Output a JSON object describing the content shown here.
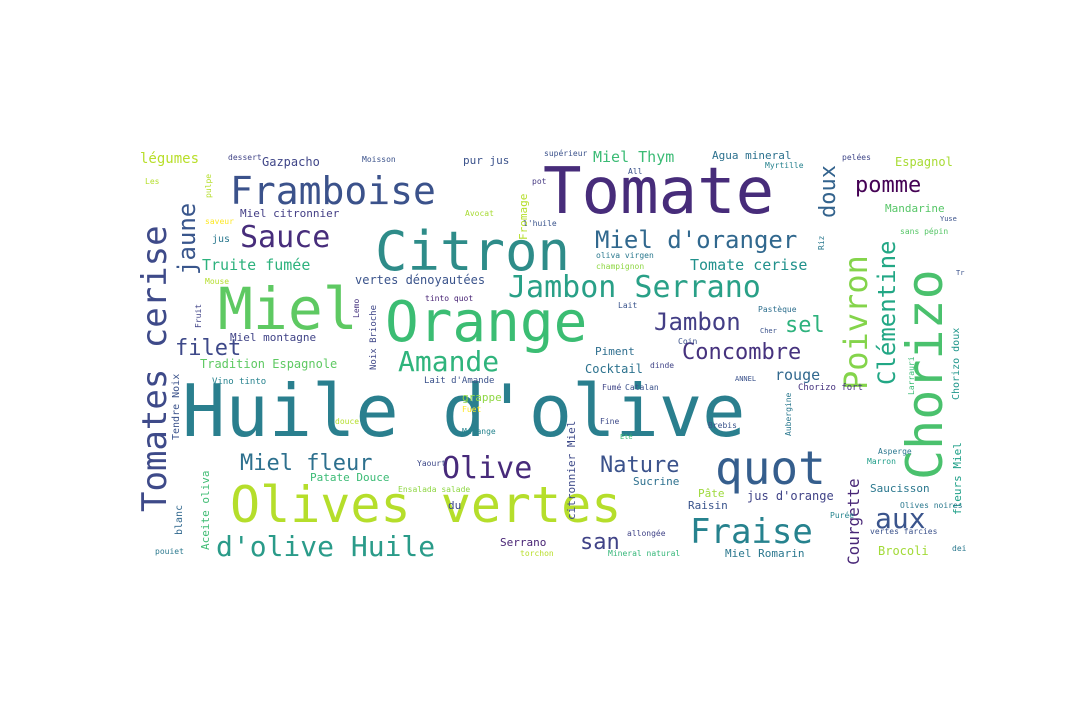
{
  "words": [
    {
      "text": "Huile d'olive",
      "color": "#2a7f8e"
    },
    {
      "text": "Tomate",
      "color": "#472c7a"
    },
    {
      "text": "Citron",
      "color": "#2e8c89"
    },
    {
      "text": "Orange",
      "color": "#3bbd73"
    },
    {
      "text": "Miel",
      "color": "#5ec962"
    },
    {
      "text": "Olives vertes",
      "color": "#b5de2b"
    },
    {
      "text": "Framboise",
      "color": "#3b528b"
    },
    {
      "text": "Chorizo",
      "color": "#4ac16d"
    },
    {
      "text": "quot",
      "color": "#355e8d"
    },
    {
      "text": "Jambon Serrano",
      "color": "#29a087"
    },
    {
      "text": "Tomates cerise",
      "color": "#3e4a89"
    },
    {
      "text": "Sauce",
      "color": "#472d7b"
    },
    {
      "text": "Miel d'oranger",
      "color": "#31688e"
    },
    {
      "text": "d'olive Huile",
      "color": "#2a9b89"
    },
    {
      "text": "Fraise",
      "color": "#26828e"
    },
    {
      "text": "Olive",
      "color": "#472a7a"
    },
    {
      "text": "Poivron",
      "color": "#84d44b"
    },
    {
      "text": "Clémentine",
      "color": "#22a785"
    },
    {
      "text": "Amande",
      "color": "#2fb47c"
    },
    {
      "text": "Jambon",
      "color": "#433e85"
    },
    {
      "text": "Concombre",
      "color": "#46327e"
    },
    {
      "text": "Miel fleur",
      "color": "#2d708e"
    },
    {
      "text": "Nature",
      "color": "#3b528b"
    },
    {
      "text": "aux",
      "color": "#3a548c"
    },
    {
      "text": "jaune",
      "color": "#39568c"
    },
    {
      "text": "pomme",
      "color": "#440154"
    },
    {
      "text": "doux",
      "color": "#33638d"
    },
    {
      "text": "sel",
      "color": "#2db27d"
    },
    {
      "text": "filet",
      "color": "#3e4989"
    },
    {
      "text": "san",
      "color": "#404387"
    },
    {
      "text": "Courgette",
      "color": "#482677"
    },
    {
      "text": "Truite fumée",
      "color": "#2db27d"
    },
    {
      "text": "Tomate cerise",
      "color": "#21918c"
    },
    {
      "text": "Miel Thym",
      "color": "#3bbb75"
    },
    {
      "text": "rouge",
      "color": "#31688e"
    },
    {
      "text": "légumes",
      "color": "#b8de29"
    },
    {
      "text": "Gazpacho",
      "color": "#404688"
    },
    {
      "text": "Miel citronnier",
      "color": "#433e85"
    },
    {
      "text": "vertes dénoyautées",
      "color": "#3a538b"
    },
    {
      "text": "Miel montagne",
      "color": "#414487"
    },
    {
      "text": "Tradition Espagnole",
      "color": "#5ec962"
    },
    {
      "text": "Cocktail",
      "color": "#2c728e"
    },
    {
      "text": "Piment",
      "color": "#2e6e8e"
    },
    {
      "text": "Patate Douce",
      "color": "#3bbb75"
    },
    {
      "text": "Sucrine",
      "color": "#2d708e"
    },
    {
      "text": "Raisin",
      "color": "#3a548c"
    },
    {
      "text": "Pâte",
      "color": "#9dd93b"
    },
    {
      "text": "jus d'orange",
      "color": "#404387"
    },
    {
      "text": "Saucisson",
      "color": "#2a778e"
    },
    {
      "text": "Mandarine",
      "color": "#56c667"
    },
    {
      "text": "Espagnol",
      "color": "#a8db34"
    },
    {
      "text": "Agua mineral",
      "color": "#2c718e"
    },
    {
      "text": "pur jus",
      "color": "#3b528b"
    },
    {
      "text": "Miel Romarin",
      "color": "#2a778e"
    },
    {
      "text": "Brocoli",
      "color": "#a2da37"
    },
    {
      "text": "Serrano",
      "color": "#482475"
    },
    {
      "text": "Aceite oliva",
      "color": "#3fbc73"
    },
    {
      "text": "Fromage",
      "color": "#b5de2b"
    },
    {
      "text": "citronnier Miel",
      "color": "#3e4a89"
    },
    {
      "text": "Tendre Noix",
      "color": "#3b528b"
    },
    {
      "text": "fleurs Miel",
      "color": "#1fa088"
    },
    {
      "text": "Chorizo doux",
      "color": "#1f968b"
    },
    {
      "text": "grappe",
      "color": "#8fd744"
    },
    {
      "text": "Noix Brioche",
      "color": "#3f4788"
    },
    {
      "text": "Lait d'Amande",
      "color": "#3b528b"
    },
    {
      "text": "Vino tinto",
      "color": "#26828e"
    },
    {
      "text": "Chorizo fort",
      "color": "#46337f"
    },
    {
      "text": "du",
      "color": "#3e4989"
    },
    {
      "text": "dessert",
      "color": "#414487"
    },
    {
      "text": "Moisson",
      "color": "#3b528b"
    },
    {
      "text": "supérieur",
      "color": "#3b528b"
    },
    {
      "text": "pot",
      "color": "#453882"
    },
    {
      "text": "Myrtille",
      "color": "#26828e"
    },
    {
      "text": "pelées",
      "color": "#3f4788"
    },
    {
      "text": "Avocat",
      "color": "#a8db34"
    },
    {
      "text": "l'huile",
      "color": "#3a548c"
    },
    {
      "text": "Riz",
      "color": "#2a788e"
    },
    {
      "text": "sans pépin",
      "color": "#56c667"
    },
    {
      "text": "jus",
      "color": "#2a788e"
    },
    {
      "text": "oliva virgen",
      "color": "#2a788e"
    },
    {
      "text": "champignon",
      "color": "#8fd744"
    },
    {
      "text": "tinto quot",
      "color": "#482475"
    },
    {
      "text": "Lait",
      "color": "#3a548c"
    },
    {
      "text": "Pastèque",
      "color": "#2e6f8e"
    },
    {
      "text": "Fumé",
      "color": "#404688"
    },
    {
      "text": "Catalan",
      "color": "#3b528b"
    },
    {
      "text": "dinde",
      "color": "#414487"
    },
    {
      "text": "Fuet",
      "color": "#fde725"
    },
    {
      "text": "Mélange",
      "color": "#25848e"
    },
    {
      "text": "douce",
      "color": "#b5de2b"
    },
    {
      "text": "Yaourt",
      "color": "#3e4989"
    },
    {
      "text": "Asperge",
      "color": "#2a768e"
    },
    {
      "text": "Marron",
      "color": "#1f9e89"
    },
    {
      "text": "Olives noires",
      "color": "#2a788e"
    },
    {
      "text": "vertes farcies",
      "color": "#3b528b"
    },
    {
      "text": "Purée",
      "color": "#25848e"
    },
    {
      "text": "allongée",
      "color": "#404387"
    },
    {
      "text": "torchon",
      "color": "#b8de29"
    },
    {
      "text": "Mineral natural",
      "color": "#35b779"
    },
    {
      "text": "blanc",
      "color": "#31688e"
    },
    {
      "text": "pouiet",
      "color": "#2a788e"
    },
    {
      "text": "Fine",
      "color": "#3e4a89"
    },
    {
      "text": "Mouse",
      "color": "#b5de2b"
    },
    {
      "text": "Fruit",
      "color": "#404387"
    },
    {
      "text": "Lemo",
      "color": "#46337f"
    },
    {
      "text": "Larrauri",
      "color": "#3bbb75"
    },
    {
      "text": "Aubergine",
      "color": "#2a788e"
    },
    {
      "text": "Brebis",
      "color": "#3a538b"
    },
    {
      "text": "Les",
      "color": "#b5de2b"
    },
    {
      "text": "pulpe",
      "color": "#b5de2b"
    },
    {
      "text": "saveur",
      "color": "#fde725"
    },
    {
      "text": "Coin",
      "color": "#3b528b"
    },
    {
      "text": "ANNEL",
      "color": "#3b528b"
    },
    {
      "text": "All",
      "color": "#3b528b"
    },
    {
      "text": "dei",
      "color": "#2a788e"
    },
    {
      "text": "Eté",
      "color": "#3bbb75"
    },
    {
      "text": "Yuse",
      "color": "#3b528b"
    },
    {
      "text": "Tr",
      "color": "#3b528b"
    },
    {
      "text": "Cher",
      "color": "#3b528b"
    },
    {
      "text": "Ensalada salade",
      "color": "#8fd744"
    }
  ]
}
